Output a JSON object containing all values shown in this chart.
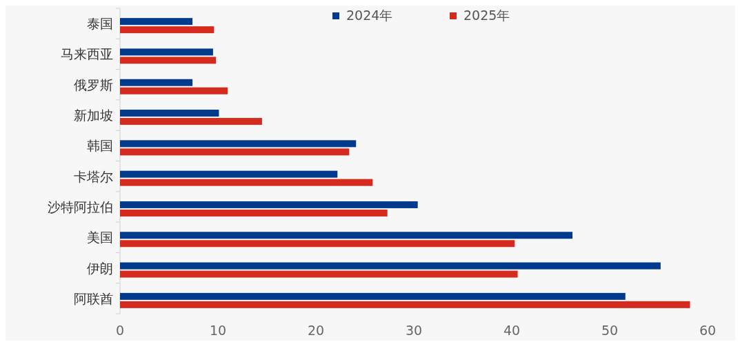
{
  "chart_data": {
    "type": "bar",
    "orientation": "horizontal",
    "categories": [
      "泰国",
      "马来西亚",
      "俄罗斯",
      "新加坡",
      "韩国",
      "卡塔尔",
      "沙特阿拉伯",
      "美国",
      "伊朗",
      "阿联酋"
    ],
    "series": [
      {
        "name": "2024年",
        "color": "#003a8c",
        "values": [
          7.4,
          9.5,
          7.4,
          10.1,
          24.1,
          22.2,
          30.4,
          46.2,
          55.2,
          51.6
        ]
      },
      {
        "name": "2025年",
        "color": "#d52b1e",
        "values": [
          9.6,
          9.8,
          11.0,
          14.5,
          23.4,
          25.8,
          27.3,
          40.3,
          40.6,
          58.2
        ]
      }
    ],
    "xlim": [
      0,
      60
    ],
    "xticks": [
      0,
      10,
      20,
      30,
      40,
      50,
      60
    ],
    "grid": false,
    "legend": "top"
  }
}
